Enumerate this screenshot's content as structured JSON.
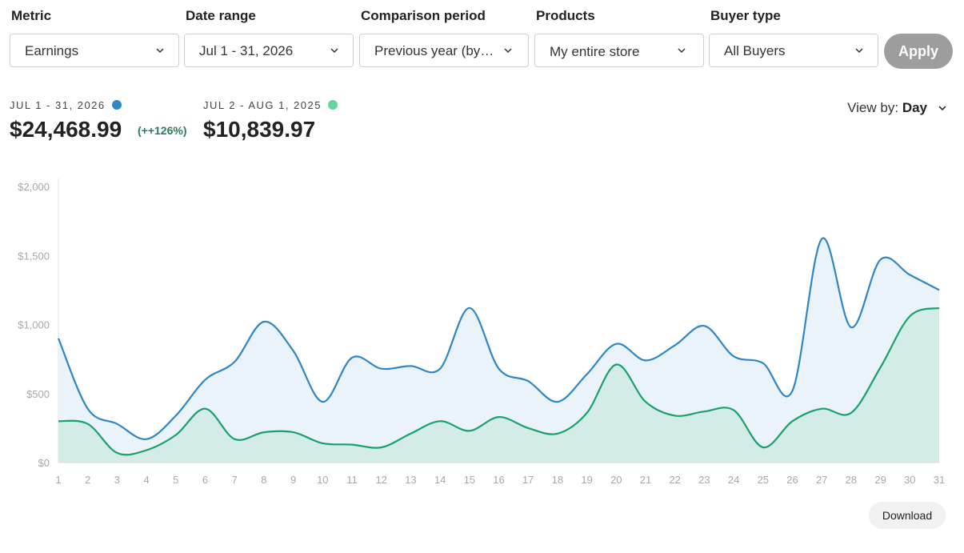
{
  "filters": {
    "metric": {
      "label": "Metric",
      "value": "Earnings"
    },
    "date_range": {
      "label": "Date range",
      "value": "Jul 1 - 31, 2026"
    },
    "comparison": {
      "label": "Comparison period",
      "value": "Previous year (by…"
    },
    "products": {
      "label": "Products",
      "value": "My entire store"
    },
    "buyer_type": {
      "label": "Buyer type",
      "value": "All Buyers"
    },
    "apply_label": "Apply"
  },
  "summary": {
    "current": {
      "label": "JUL 1 - 31, 2026",
      "total": "$24,468.99",
      "change": "(++126%)",
      "color": "#2f86c4"
    },
    "previous": {
      "label": "JUL 2 - AUG 1, 2025",
      "total": "$10,839.97",
      "color": "#5fd69a"
    },
    "view_by": {
      "label": "View by:",
      "value": "Day"
    }
  },
  "chart_data": {
    "type": "area",
    "x": [
      1,
      2,
      3,
      4,
      5,
      6,
      7,
      8,
      9,
      10,
      11,
      12,
      13,
      14,
      15,
      16,
      17,
      18,
      19,
      20,
      21,
      22,
      23,
      24,
      25,
      26,
      27,
      28,
      29,
      30,
      31
    ],
    "ylim": [
      0,
      2000
    ],
    "yticks": [
      "$0",
      "$500",
      "$1,000",
      "$1,500",
      "$2,000"
    ],
    "grid": false,
    "series": [
      {
        "color": "#2f86c4",
        "fill": "#eaf2fa",
        "values": [
          900,
          390,
          280,
          170,
          340,
          600,
          730,
          1020,
          810,
          440,
          760,
          680,
          700,
          680,
          1120,
          680,
          590,
          440,
          640,
          860,
          740,
          850,
          990,
          770,
          720,
          520,
          1620,
          980,
          1470,
          1360,
          1250
        ]
      },
      {
        "color": "#1aa06a",
        "fill": "#d3ece7",
        "values": [
          300,
          280,
          70,
          90,
          200,
          390,
          170,
          220,
          220,
          140,
          130,
          110,
          210,
          300,
          230,
          330,
          250,
          210,
          360,
          710,
          440,
          340,
          370,
          380,
          110,
          300,
          390,
          360,
          690,
          1060,
          1120
        ]
      }
    ]
  },
  "download_label": "Download"
}
